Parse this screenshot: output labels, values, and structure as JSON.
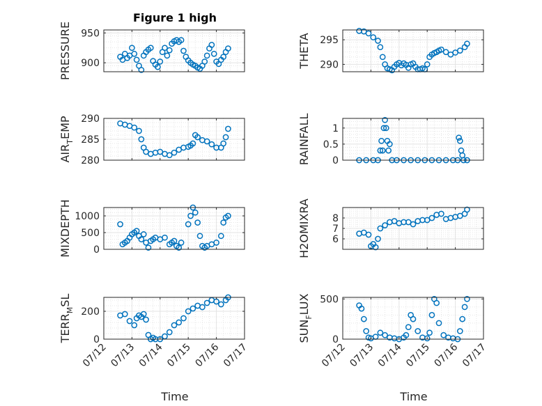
{
  "figure": {
    "title": "Figure 1 high"
  },
  "style": {
    "marker_color": "#0072BD",
    "axis_color": "#262626",
    "grid_color": "#dfdfdf"
  },
  "x_axis": {
    "label": "Time",
    "range": [
      "2023-07-12",
      "2023-07-17"
    ],
    "tick_labels": [
      "07/12",
      "07/13",
      "07/14",
      "07/15",
      "07/16",
      "07/17"
    ]
  },
  "chart_data": [
    {
      "type": "scatter",
      "title": "Figure 1 high",
      "ylabel": "PRESSURE",
      "ylim": [
        885,
        955
      ],
      "yticks": [
        900,
        950
      ],
      "grid": true,
      "x": [
        "07/12 14:00",
        "07/12 16:00",
        "07/12 18:00",
        "07/12 20:00",
        "07/12 22:00",
        "07/13 00:00",
        "07/13 02:00",
        "07/13 04:00",
        "07/13 06:00",
        "07/13 08:00",
        "07/13 10:00",
        "07/13 12:00",
        "07/13 14:00",
        "07/13 16:00",
        "07/13 18:00",
        "07/13 20:00",
        "07/13 22:00",
        "07/14 00:00",
        "07/14 02:00",
        "07/14 04:00",
        "07/14 06:00",
        "07/14 08:00",
        "07/14 10:00",
        "07/14 12:00",
        "07/14 14:00",
        "07/14 16:00",
        "07/14 18:00",
        "07/14 20:00",
        "07/14 22:00",
        "07/15 00:00",
        "07/15 02:00",
        "07/15 04:00",
        "07/15 06:00",
        "07/15 08:00",
        "07/15 10:00",
        "07/15 12:00",
        "07/15 14:00",
        "07/15 16:00",
        "07/15 18:00",
        "07/15 20:00",
        "07/15 22:00",
        "07/16 00:00",
        "07/16 02:00",
        "07/16 04:00",
        "07/16 06:00",
        "07/16 08:00",
        "07/16 10:00"
      ],
      "values": [
        910,
        905,
        915,
        908,
        912,
        925,
        915,
        905,
        895,
        888,
        912,
        918,
        922,
        925,
        903,
        897,
        893,
        902,
        918,
        925,
        912,
        921,
        932,
        936,
        938,
        935,
        938,
        920,
        910,
        904,
        900,
        897,
        895,
        892,
        890,
        895,
        902,
        912,
        924,
        930,
        915,
        902,
        898,
        905,
        910,
        918,
        924
      ]
    },
    {
      "type": "scatter",
      "ylabel": "THETA",
      "ylim": [
        288.5,
        297
      ],
      "yticks": [
        290,
        295
      ],
      "grid": true,
      "x": [
        "07/12 14:00",
        "07/12 18:00",
        "07/12 22:00",
        "07/13 02:00",
        "07/13 06:00",
        "07/13 08:00",
        "07/13 10:00",
        "07/13 12:00",
        "07/13 14:00",
        "07/13 16:00",
        "07/13 18:00",
        "07/13 20:00",
        "07/13 22:00",
        "07/14 00:00",
        "07/14 02:00",
        "07/14 04:00",
        "07/14 06:00",
        "07/14 08:00",
        "07/14 10:00",
        "07/14 12:00",
        "07/14 14:00",
        "07/14 16:00",
        "07/14 18:00",
        "07/14 20:00",
        "07/14 22:00",
        "07/15 00:00",
        "07/15 02:00",
        "07/15 04:00",
        "07/15 06:00",
        "07/15 08:00",
        "07/15 10:00",
        "07/15 12:00",
        "07/15 16:00",
        "07/15 20:00",
        "07/16 00:00",
        "07/16 04:00",
        "07/16 08:00",
        "07/16 10:00"
      ],
      "values": [
        296.8,
        296.7,
        296.3,
        295.5,
        294.8,
        293.5,
        291.5,
        290.0,
        289.2,
        289.0,
        288.8,
        289.5,
        290.0,
        290.3,
        289.8,
        290.2,
        289.9,
        289.3,
        290.0,
        290.2,
        289.5,
        289.0,
        289.0,
        289.2,
        289.0,
        290.0,
        291.5,
        292.0,
        292.3,
        292.5,
        292.8,
        293.0,
        292.5,
        292.0,
        292.4,
        292.8,
        293.5,
        294.2
      ]
    },
    {
      "type": "scatter",
      "ylabel": "AIR_TEMP",
      "ylim": [
        280,
        290
      ],
      "yticks": [
        280,
        285,
        290
      ],
      "grid": true,
      "x": [
        "07/12 14:00",
        "07/12 18:00",
        "07/12 22:00",
        "07/13 02:00",
        "07/13 06:00",
        "07/13 08:00",
        "07/13 10:00",
        "07/13 12:00",
        "07/13 16:00",
        "07/13 20:00",
        "07/14 00:00",
        "07/14 04:00",
        "07/14 08:00",
        "07/14 12:00",
        "07/14 16:00",
        "07/14 20:00",
        "07/15 00:00",
        "07/15 02:00",
        "07/15 04:00",
        "07/15 06:00",
        "07/15 08:00",
        "07/15 12:00",
        "07/15 16:00",
        "07/15 20:00",
        "07/16 00:00",
        "07/16 04:00",
        "07/16 06:00",
        "07/16 08:00",
        "07/16 10:00"
      ],
      "values": [
        288.8,
        288.5,
        288.2,
        287.8,
        287.0,
        285.0,
        283.0,
        282.0,
        281.5,
        281.8,
        282.0,
        281.5,
        281.2,
        281.8,
        282.5,
        283.0,
        283.2,
        283.5,
        284.0,
        286.0,
        285.5,
        284.8,
        284.5,
        283.8,
        283.0,
        283.0,
        284.0,
        285.5,
        287.5
      ]
    },
    {
      "type": "scatter",
      "ylabel": "RAINFALL",
      "ylim": [
        0,
        1.3
      ],
      "yticks": [
        0,
        0.5,
        1
      ],
      "grid": true,
      "x": [
        "07/12 14:00",
        "07/12 20:00",
        "07/13 02:00",
        "07/13 06:00",
        "07/13 08:00",
        "07/13 09:00",
        "07/13 10:00",
        "07/13 11:00",
        "07/13 12:00",
        "07/13 13:00",
        "07/13 14:00",
        "07/13 15:00",
        "07/13 16:00",
        "07/13 18:00",
        "07/13 22:00",
        "07/14 04:00",
        "07/14 10:00",
        "07/14 16:00",
        "07/14 22:00",
        "07/15 04:00",
        "07/15 10:00",
        "07/15 16:00",
        "07/15 22:00",
        "07/16 02:00",
        "07/16 03:00",
        "07/16 04:00",
        "07/16 05:00",
        "07/16 06:00",
        "07/16 07:00",
        "07/16 10:00"
      ],
      "values": [
        0,
        0,
        0,
        0,
        0.3,
        0.6,
        0.3,
        1.0,
        1.25,
        1.0,
        0.6,
        0.3,
        0.5,
        0,
        0,
        0,
        0,
        0,
        0,
        0,
        0,
        0,
        0,
        0,
        0.7,
        0.6,
        0.3,
        0.15,
        0,
        0
      ]
    },
    {
      "type": "scatter",
      "ylabel": "MIXDEPTH",
      "ylim": [
        0,
        1250
      ],
      "yticks": [
        0,
        500,
        1000
      ],
      "grid": true,
      "x": [
        "07/12 14:00",
        "07/12 16:00",
        "07/12 18:00",
        "07/12 20:00",
        "07/12 22:00",
        "07/13 00:00",
        "07/13 02:00",
        "07/13 04:00",
        "07/13 06:00",
        "07/13 08:00",
        "07/13 10:00",
        "07/13 12:00",
        "07/13 14:00",
        "07/13 16:00",
        "07/13 18:00",
        "07/13 20:00",
        "07/14 00:00",
        "07/14 04:00",
        "07/14 08:00",
        "07/14 10:00",
        "07/14 12:00",
        "07/14 14:00",
        "07/14 16:00",
        "07/14 18:00",
        "07/15 00:00",
        "07/15 02:00",
        "07/15 04:00",
        "07/15 06:00",
        "07/15 08:00",
        "07/15 10:00",
        "07/15 12:00",
        "07/15 14:00",
        "07/15 16:00",
        "07/15 20:00",
        "07/16 00:00",
        "07/16 04:00",
        "07/16 06:00",
        "07/16 08:00",
        "07/16 10:00"
      ],
      "values": [
        750,
        150,
        200,
        250,
        350,
        450,
        500,
        550,
        400,
        300,
        450,
        200,
        50,
        250,
        300,
        350,
        300,
        350,
        150,
        200,
        250,
        100,
        50,
        200,
        750,
        1000,
        1250,
        1100,
        800,
        400,
        100,
        50,
        100,
        150,
        200,
        400,
        800,
        950,
        1000
      ]
    },
    {
      "type": "scatter",
      "ylabel": "H2OMIXRA",
      "ylim": [
        5,
        9
      ],
      "yticks": [
        6,
        7,
        8
      ],
      "grid": true,
      "x": [
        "07/12 14:00",
        "07/12 18:00",
        "07/12 22:00",
        "07/13 00:00",
        "07/13 02:00",
        "07/13 04:00",
        "07/13 06:00",
        "07/13 08:00",
        "07/13 12:00",
        "07/13 16:00",
        "07/13 20:00",
        "07/14 00:00",
        "07/14 04:00",
        "07/14 08:00",
        "07/14 12:00",
        "07/14 16:00",
        "07/14 20:00",
        "07/15 00:00",
        "07/15 04:00",
        "07/15 08:00",
        "07/15 12:00",
        "07/15 16:00",
        "07/15 20:00",
        "07/16 00:00",
        "07/16 04:00",
        "07/16 08:00",
        "07/16 10:00"
      ],
      "values": [
        6.5,
        6.6,
        6.4,
        5.3,
        5.5,
        5.2,
        6.0,
        7.0,
        7.3,
        7.6,
        7.7,
        7.5,
        7.6,
        7.6,
        7.4,
        7.7,
        7.8,
        7.8,
        8.0,
        8.3,
        8.4,
        7.9,
        8.0,
        8.1,
        8.2,
        8.4,
        8.8
      ]
    },
    {
      "type": "scatter",
      "ylabel": "TERR_MSL",
      "ylim": [
        0,
        300
      ],
      "yticks": [
        0,
        200
      ],
      "grid": true,
      "x": [
        "07/12 14:00",
        "07/12 18:00",
        "07/12 22:00",
        "07/13 02:00",
        "07/13 04:00",
        "07/13 06:00",
        "07/13 08:00",
        "07/13 10:00",
        "07/13 12:00",
        "07/13 14:00",
        "07/13 16:00",
        "07/13 18:00",
        "07/13 20:00",
        "07/14 00:00",
        "07/14 04:00",
        "07/14 08:00",
        "07/14 12:00",
        "07/14 16:00",
        "07/14 20:00",
        "07/15 00:00",
        "07/15 04:00",
        "07/15 08:00",
        "07/15 12:00",
        "07/15 16:00",
        "07/15 20:00",
        "07/16 00:00",
        "07/16 04:00",
        "07/16 08:00",
        "07/16 10:00"
      ],
      "values": [
        170,
        180,
        130,
        100,
        150,
        170,
        160,
        180,
        140,
        30,
        0,
        10,
        0,
        0,
        20,
        50,
        100,
        120,
        150,
        200,
        220,
        240,
        230,
        260,
        280,
        270,
        250,
        280,
        300
      ]
    },
    {
      "type": "scatter",
      "ylabel": "SUN_FLUX",
      "ylim": [
        0,
        520
      ],
      "yticks": [
        0,
        500
      ],
      "grid": true,
      "x": [
        "07/12 14:00",
        "07/12 16:00",
        "07/12 18:00",
        "07/12 20:00",
        "07/12 22:00",
        "07/13 00:00",
        "07/13 04:00",
        "07/13 08:00",
        "07/13 12:00",
        "07/13 16:00",
        "07/13 20:00",
        "07/14 00:00",
        "07/14 04:00",
        "07/14 06:00",
        "07/14 08:00",
        "07/14 10:00",
        "07/14 12:00",
        "07/14 16:00",
        "07/14 20:00",
        "07/15 00:00",
        "07/15 02:00",
        "07/15 04:00",
        "07/15 06:00",
        "07/15 08:00",
        "07/15 10:00",
        "07/15 14:00",
        "07/15 18:00",
        "07/15 22:00",
        "07/16 02:00",
        "07/16 04:00",
        "07/16 06:00",
        "07/16 08:00",
        "07/16 10:00"
      ],
      "values": [
        420,
        380,
        250,
        100,
        20,
        10,
        30,
        80,
        50,
        20,
        10,
        0,
        20,
        50,
        150,
        300,
        250,
        100,
        20,
        10,
        80,
        300,
        500,
        450,
        200,
        50,
        20,
        10,
        0,
        100,
        250,
        400,
        500
      ]
    }
  ]
}
